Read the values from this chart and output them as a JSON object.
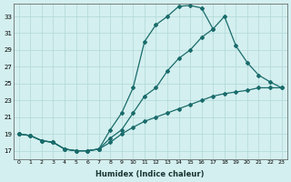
{
  "xlabel": "Humidex (Indice chaleur)",
  "background_color": "#d4efef",
  "grid_color": "#b0d8d8",
  "line_color": "#1a6b6b",
  "xlim": [
    -0.5,
    23.5
  ],
  "ylim": [
    16.0,
    34.5
  ],
  "xticks": [
    0,
    1,
    2,
    3,
    4,
    5,
    6,
    7,
    8,
    9,
    10,
    11,
    12,
    13,
    14,
    15,
    16,
    17,
    18,
    19,
    20,
    21,
    22,
    23
  ],
  "yticks": [
    17,
    19,
    21,
    23,
    25,
    27,
    29,
    31,
    33
  ],
  "curve1_x": [
    0,
    1,
    2,
    3,
    4,
    5,
    6,
    7,
    8,
    9,
    10,
    11,
    12,
    13,
    14,
    15,
    16,
    17
  ],
  "curve1_y": [
    19.0,
    18.8,
    18.2,
    18.0,
    17.2,
    17.0,
    17.0,
    17.2,
    19.5,
    21.5,
    24.5,
    30.0,
    32.0,
    33.0,
    34.2,
    34.3,
    34.0,
    31.5
  ],
  "curve2_x": [
    0,
    1,
    2,
    3,
    4,
    5,
    6,
    7,
    8,
    9,
    10,
    11,
    12,
    13,
    14,
    15,
    16,
    17,
    18,
    19,
    20,
    21,
    22,
    23
  ],
  "curve2_y": [
    19.0,
    18.8,
    18.2,
    18.0,
    17.2,
    17.0,
    17.0,
    17.2,
    18.5,
    19.5,
    21.5,
    23.5,
    24.5,
    26.5,
    28.0,
    29.0,
    30.5,
    31.5,
    33.0,
    29.5,
    27.5,
    26.0,
    25.2,
    24.5
  ],
  "curve3_x": [
    0,
    1,
    2,
    3,
    4,
    5,
    6,
    7,
    8,
    9,
    10,
    11,
    12,
    13,
    14,
    15,
    16,
    17,
    18,
    19,
    20,
    21,
    22,
    23
  ],
  "curve3_y": [
    19.0,
    18.8,
    18.2,
    18.0,
    17.2,
    17.0,
    17.0,
    17.2,
    18.0,
    19.0,
    19.8,
    20.5,
    21.0,
    21.5,
    22.0,
    22.5,
    23.0,
    23.5,
    23.8,
    24.0,
    24.2,
    24.5,
    24.5,
    24.5
  ]
}
